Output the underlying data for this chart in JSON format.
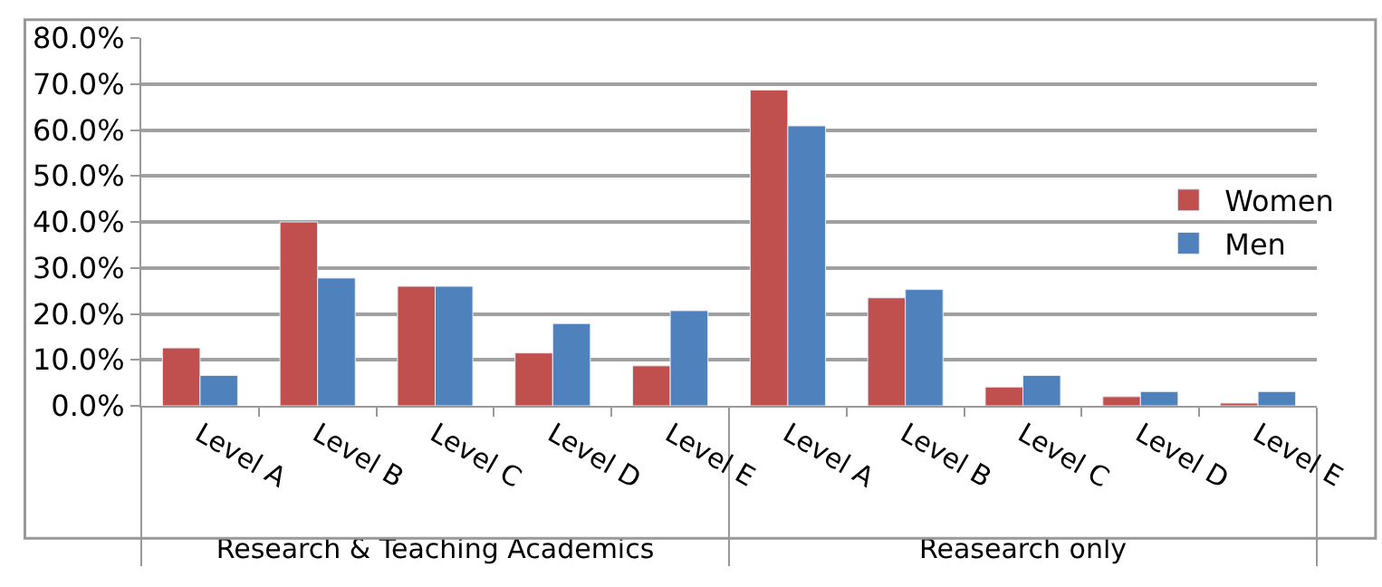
{
  "chart_data": {
    "type": "bar",
    "categories": [
      "Level A",
      "Level B",
      "Level C",
      "Level D",
      "Level E",
      "Level A",
      "Level B",
      "Level C",
      "Level D",
      "Level E"
    ],
    "series": [
      {
        "name": "Women",
        "color": "#c0504d",
        "values": [
          12.6,
          40.0,
          26.0,
          11.5,
          8.7,
          68.7,
          23.5,
          4.1,
          2.0,
          0.6
        ]
      },
      {
        "name": "Men",
        "color": "#4f81bd",
        "values": [
          6.6,
          27.8,
          26.0,
          17.9,
          20.7,
          60.9,
          25.3,
          6.6,
          3.1,
          3.1
        ]
      }
    ],
    "annotations": [
      "Research & Teaching Academics",
      "Reasearch only"
    ],
    "ylim": [
      0,
      80
    ],
    "yticks": [
      {
        "value": 0,
        "label": "0.0%"
      },
      {
        "value": 10,
        "label": "10.0%"
      },
      {
        "value": 20,
        "label": "20.0%"
      },
      {
        "value": 30,
        "label": "30.0%"
      },
      {
        "value": 40,
        "label": "40.0%"
      },
      {
        "value": 50,
        "label": "50.0%"
      },
      {
        "value": 60,
        "label": "60.0%"
      },
      {
        "value": 70,
        "label": "70.0%"
      },
      {
        "value": 80,
        "label": "80.0%"
      }
    ],
    "grid": "y",
    "legend": "right"
  }
}
